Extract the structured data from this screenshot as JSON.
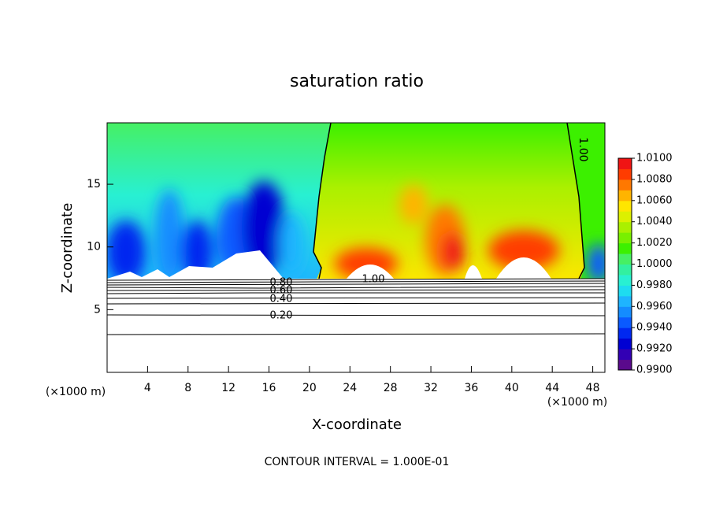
{
  "chart_data": {
    "type": "contour",
    "title": "saturation ratio",
    "x_label": "X-coordinate",
    "y_label": "Z-coordinate",
    "x_unit": "(×1000 m)",
    "x_unit_right": "(×1000 m)",
    "xlim": [
      0,
      49.2
    ],
    "ylim": [
      0,
      19.9
    ],
    "xticks": [
      4,
      8,
      12,
      16,
      20,
      24,
      28,
      32,
      36,
      40,
      44,
      48
    ],
    "yticks": [
      5,
      10,
      15
    ],
    "clim": [
      0.99,
      1.01
    ],
    "cticks": [
      {
        "value": 1.01,
        "label": "1.0100"
      },
      {
        "value": 1.008,
        "label": "1.0080"
      },
      {
        "value": 1.006,
        "label": "1.0060"
      },
      {
        "value": 1.004,
        "label": "1.0040"
      },
      {
        "value": 1.002,
        "label": "1.0020"
      },
      {
        "value": 1.0,
        "label": "1.0000"
      },
      {
        "value": 0.998,
        "label": "0.9980"
      },
      {
        "value": 0.996,
        "label": "0.9960"
      },
      {
        "value": 0.994,
        "label": "0.9940"
      },
      {
        "value": 0.992,
        "label": "0.9920"
      },
      {
        "value": 0.99,
        "label": "0.9900"
      }
    ],
    "colormap": [
      "#5a0a8c",
      "#3200b4",
      "#0000d2",
      "#0028f0",
      "#0a5aff",
      "#148cff",
      "#1eb4ff",
      "#1edcf0",
      "#28f0d2",
      "#32f0a0",
      "#46f064",
      "#3cf000",
      "#78f000",
      "#aaf000",
      "#dcf000",
      "#ffe600",
      "#ffb400",
      "#ff7800",
      "#ff3c00",
      "#f01414"
    ],
    "contour_labels": [
      "1.00",
      "1.00",
      "0.80",
      "0.60",
      "0.40",
      "0.20"
    ],
    "footnote": "CONTOUR INTERVAL = 1.000E-01"
  }
}
